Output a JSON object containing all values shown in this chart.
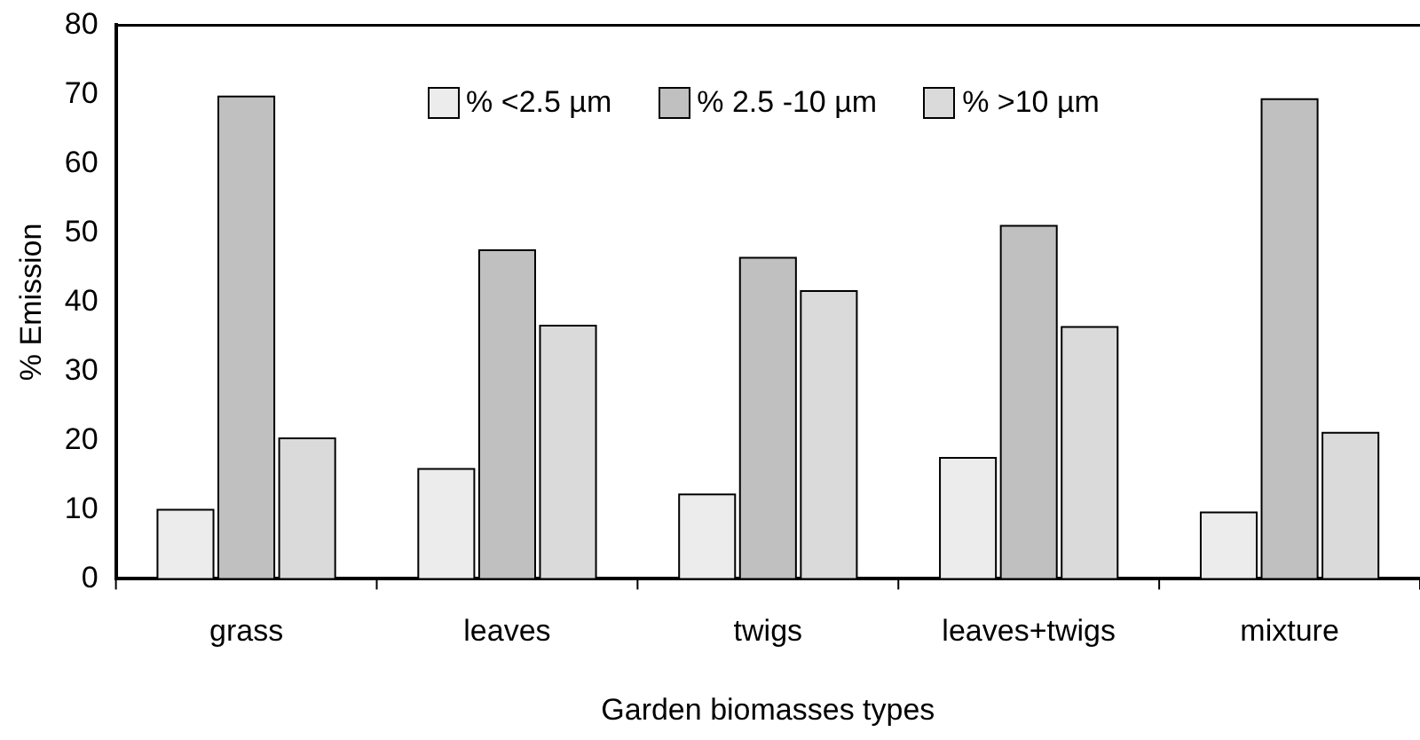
{
  "chart_data": {
    "type": "bar",
    "xlabel": "Garden biomasses types",
    "ylabel": "% Emission",
    "categories": [
      "grass",
      "leaves",
      "twigs",
      "leaves+twigs",
      "mixture"
    ],
    "series": [
      {
        "name": "% <2.5 µm",
        "color": "#ececec",
        "values": [
          10,
          15.9,
          12.2,
          17.5,
          9.6
        ]
      },
      {
        "name": "% 2.5 -10 µm",
        "color": "#c0c0c0",
        "values": [
          69.7,
          47.5,
          46.4,
          51,
          69.3
        ]
      },
      {
        "name": "% >10 µm",
        "color": "#dadada",
        "values": [
          20.3,
          36.6,
          41.6,
          36.4,
          21.1
        ]
      }
    ],
    "ylim": [
      0,
      80
    ],
    "yticks": [
      0,
      10,
      20,
      30,
      40,
      50,
      60,
      70,
      80
    ],
    "grid": false,
    "legend": "top"
  }
}
